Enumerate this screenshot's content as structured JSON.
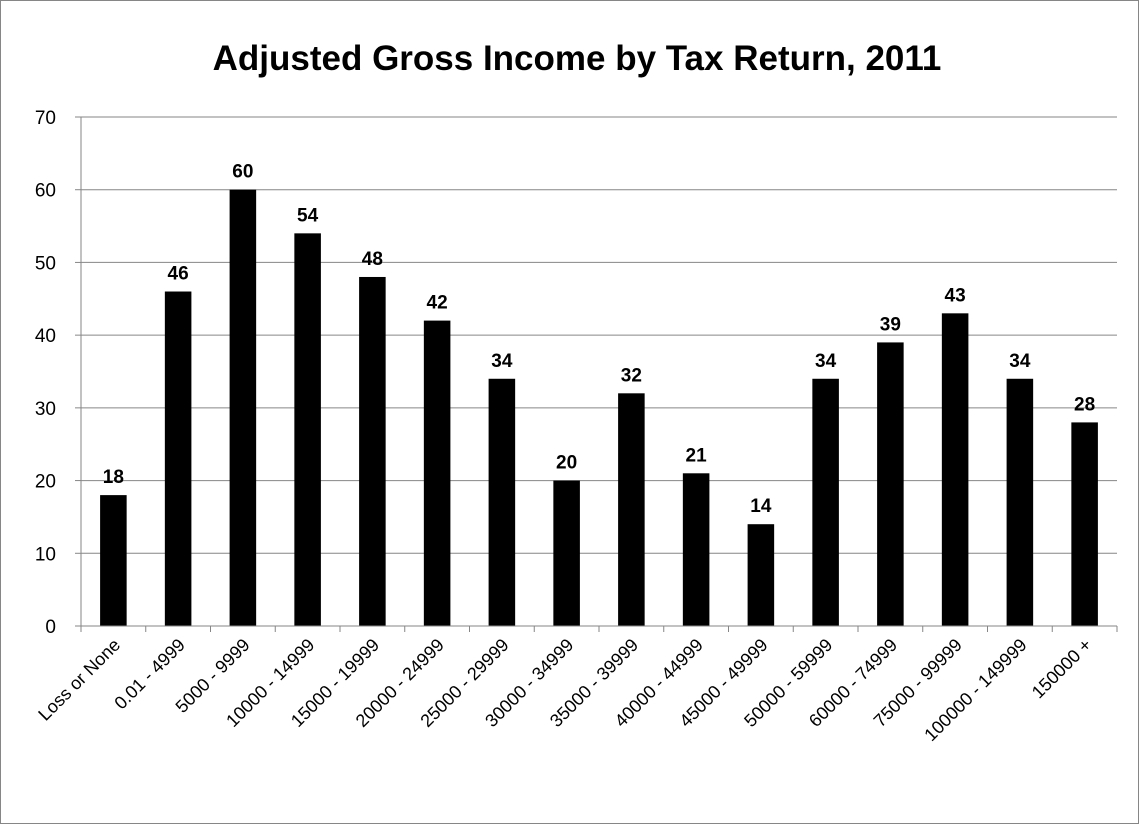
{
  "chart_data": {
    "type": "bar",
    "title": "Adjusted Gross Income by Tax Return, 2011",
    "xlabel": "",
    "ylabel": "",
    "ylim": [
      0,
      70
    ],
    "yticks": [
      0,
      10,
      20,
      30,
      40,
      50,
      60,
      70
    ],
    "grid": true,
    "legend": "none",
    "bar_color": "#000000",
    "categories": [
      "Loss or None",
      "0.01 - 4999",
      "5000 - 9999",
      "10000 - 14999",
      "15000 - 19999",
      "20000 - 24999",
      "25000 - 29999",
      "30000 - 34999",
      "35000 - 39999",
      "40000 - 44999",
      "45000 - 49999",
      "50000 - 59999",
      "60000 - 74999",
      "75000 - 99999",
      "100000 - 149999",
      "150000 +"
    ],
    "values": [
      18,
      46,
      60,
      54,
      48,
      42,
      34,
      20,
      32,
      21,
      14,
      34,
      39,
      43,
      34,
      28
    ]
  }
}
